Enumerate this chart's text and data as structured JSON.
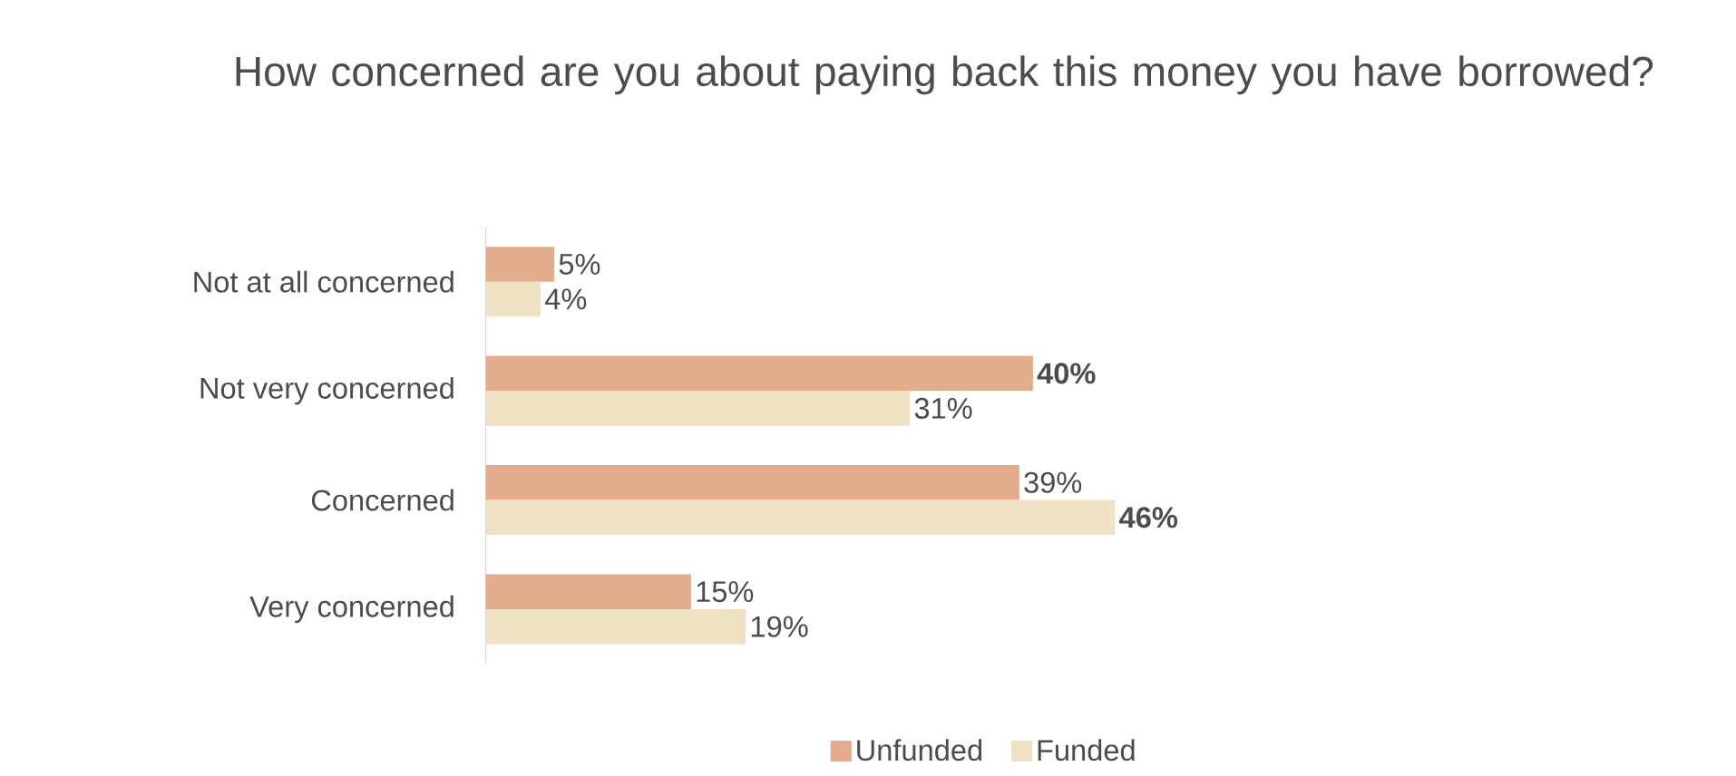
{
  "chart_data": {
    "type": "bar",
    "orientation": "horizontal",
    "title": "How concerned are you about paying back this money you have borrowed?",
    "categories": [
      "Not at all concerned",
      "Not very concerned",
      "Concerned",
      "Very concerned"
    ],
    "series": [
      {
        "name": "Unfunded",
        "color": "#e3ad8d",
        "values": [
          5,
          40,
          39,
          15
        ],
        "value_labels": [
          "5%",
          "**40%**",
          "39%",
          "15%"
        ]
      },
      {
        "name": "Funded",
        "color": "#efe2c4",
        "values": [
          4,
          31,
          46,
          19
        ],
        "value_labels": [
          "4%",
          "31%",
          "**46%**",
          "19%"
        ]
      }
    ],
    "legend": "bottom"
  }
}
